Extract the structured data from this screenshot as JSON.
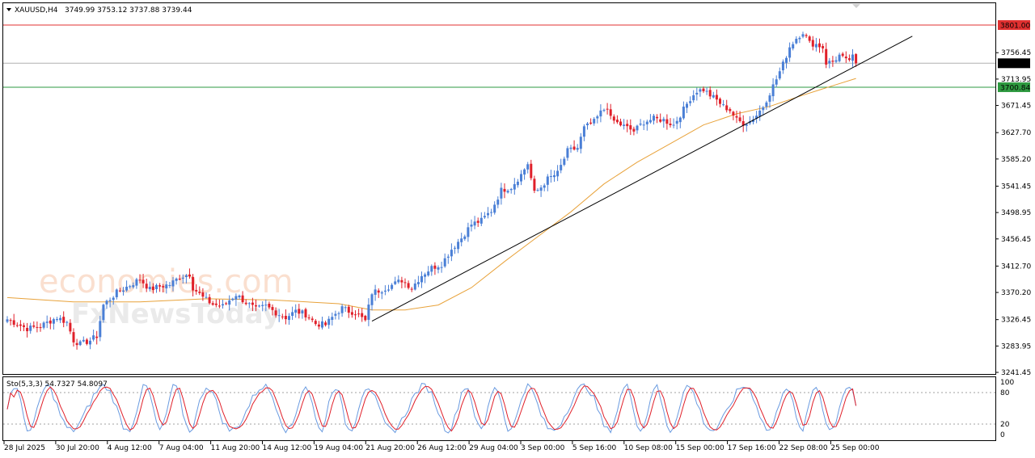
{
  "header": {
    "symbol": "XAUUSD,H4",
    "ohlc": "3749.99 3753.12 3737.88 3739.44"
  },
  "watermark": {
    "line1": "economies.com",
    "line2": "FxNewsToday"
  },
  "colors": {
    "bull": "#4a7fd6",
    "bear": "#e0202a",
    "ma": "#e8a23a",
    "trend": "#000000",
    "resistance": "#e03030",
    "support": "#2e9a40",
    "current": "#b0b0b0",
    "k_line": "#6a9be0",
    "d_line": "#e0202a"
  },
  "price_labels": {
    "resistance": "3801.00",
    "current": "3739.44",
    "support": "3700.84"
  },
  "chart_data": {
    "type": "candlestick",
    "instrument": "XAUUSD",
    "timeframe": "H4",
    "y_ticks": [
      "3756.45",
      "3713.95",
      "3671.45",
      "3627.70",
      "3585.20",
      "3541.45",
      "3498.95",
      "3456.45",
      "3412.70",
      "3370.20",
      "3326.45",
      "3283.95",
      "3241.45"
    ],
    "ylim": [
      3241.45,
      3813
    ],
    "x_ticks": [
      "28 Jul 2025",
      "30 Jul 20:00",
      "4 Aug 12:00",
      "7 Aug 04:00",
      "11 Aug 20:00",
      "14 Aug 12:00",
      "19 Aug 04:00",
      "21 Aug 20:00",
      "26 Aug 12:00",
      "29 Aug 04:00",
      "3 Sep 00:00",
      "5 Sep 16:00",
      "10 Sep 08:00",
      "15 Sep 00:00",
      "17 Sep 16:00",
      "22 Sep 08:00",
      "25 Sep 00:00"
    ],
    "close_path": [
      [
        0,
        3327
      ],
      [
        6,
        3312
      ],
      [
        10,
        3316
      ],
      [
        15,
        3330
      ],
      [
        18,
        3322
      ],
      [
        20,
        3293
      ],
      [
        22,
        3287
      ],
      [
        25,
        3293
      ],
      [
        27,
        3300
      ],
      [
        29,
        3350
      ],
      [
        33,
        3370
      ],
      [
        37,
        3382
      ],
      [
        40,
        3392
      ],
      [
        43,
        3375
      ],
      [
        46,
        3380
      ],
      [
        49,
        3383
      ],
      [
        52,
        3395
      ],
      [
        55,
        3400
      ],
      [
        56,
        3378
      ],
      [
        59,
        3362
      ],
      [
        62,
        3351
      ],
      [
        65,
        3348
      ],
      [
        67,
        3358
      ],
      [
        69,
        3367
      ],
      [
        72,
        3354
      ],
      [
        75,
        3343
      ],
      [
        78,
        3348
      ],
      [
        81,
        3338
      ],
      [
        84,
        3330
      ],
      [
        87,
        3340
      ],
      [
        90,
        3335
      ],
      [
        93,
        3320
      ],
      [
        96,
        3318
      ],
      [
        99,
        3336
      ],
      [
        101,
        3345
      ],
      [
        103,
        3340
      ],
      [
        105,
        3338
      ],
      [
        108,
        3324
      ],
      [
        110,
        3370
      ],
      [
        113,
        3375
      ],
      [
        116,
        3382
      ],
      [
        119,
        3390
      ],
      [
        122,
        3378
      ],
      [
        125,
        3398
      ],
      [
        128,
        3410
      ],
      [
        131,
        3416
      ],
      [
        134,
        3440
      ],
      [
        137,
        3458
      ],
      [
        140,
        3480
      ],
      [
        143,
        3486
      ],
      [
        146,
        3502
      ],
      [
        149,
        3535
      ],
      [
        152,
        3540
      ],
      [
        155,
        3560
      ],
      [
        157,
        3578
      ],
      [
        159,
        3530
      ],
      [
        161,
        3540
      ],
      [
        163,
        3553
      ],
      [
        166,
        3562
      ],
      [
        169,
        3598
      ],
      [
        172,
        3603
      ],
      [
        174,
        3635
      ],
      [
        177,
        3645
      ],
      [
        179,
        3660
      ],
      [
        181,
        3670
      ],
      [
        182,
        3650
      ],
      [
        184,
        3643
      ],
      [
        186,
        3638
      ],
      [
        189,
        3630
      ],
      [
        192,
        3645
      ],
      [
        195,
        3650
      ],
      [
        198,
        3648
      ],
      [
        201,
        3640
      ],
      [
        204,
        3665
      ],
      [
        206,
        3683
      ],
      [
        208,
        3695
      ],
      [
        210,
        3697
      ],
      [
        212,
        3688
      ],
      [
        214,
        3680
      ],
      [
        216,
        3670
      ],
      [
        218,
        3664
      ],
      [
        220,
        3648
      ],
      [
        222,
        3643
      ],
      [
        224,
        3646
      ],
      [
        226,
        3656
      ],
      [
        228,
        3670
      ],
      [
        230,
        3692
      ],
      [
        232,
        3714
      ],
      [
        234,
        3738
      ],
      [
        236,
        3766
      ],
      [
        238,
        3780
      ],
      [
        240,
        3790
      ],
      [
        242,
        3772
      ],
      [
        244,
        3770
      ],
      [
        246,
        3765
      ],
      [
        247,
        3740
      ],
      [
        249,
        3742
      ],
      [
        251,
        3752
      ],
      [
        253,
        3743
      ],
      [
        255,
        3749
      ],
      [
        256,
        3739.44
      ]
    ],
    "resistance": 3801.0,
    "support": 3700.84,
    "current": 3739.44,
    "trendline": {
      "start": [
        110,
        3324
      ],
      "end": [
        273,
        3783
      ]
    },
    "ma_path": [
      [
        0,
        3362
      ],
      [
        20,
        3355
      ],
      [
        40,
        3355
      ],
      [
        60,
        3360
      ],
      [
        80,
        3358
      ],
      [
        100,
        3352
      ],
      [
        110,
        3342
      ],
      [
        120,
        3342
      ],
      [
        130,
        3350
      ],
      [
        140,
        3378
      ],
      [
        150,
        3420
      ],
      [
        160,
        3460
      ],
      [
        170,
        3500
      ],
      [
        180,
        3545
      ],
      [
        190,
        3580
      ],
      [
        200,
        3610
      ],
      [
        210,
        3640
      ],
      [
        220,
        3658
      ],
      [
        230,
        3670
      ],
      [
        240,
        3688
      ],
      [
        250,
        3705
      ],
      [
        256,
        3715
      ]
    ]
  },
  "stochastic": {
    "label": "Sto(5,3,3) 54.7327 54.8097",
    "levels": [
      "100",
      "80",
      "20",
      "0"
    ],
    "k_last": 54.7327,
    "d_last": 54.8097
  }
}
